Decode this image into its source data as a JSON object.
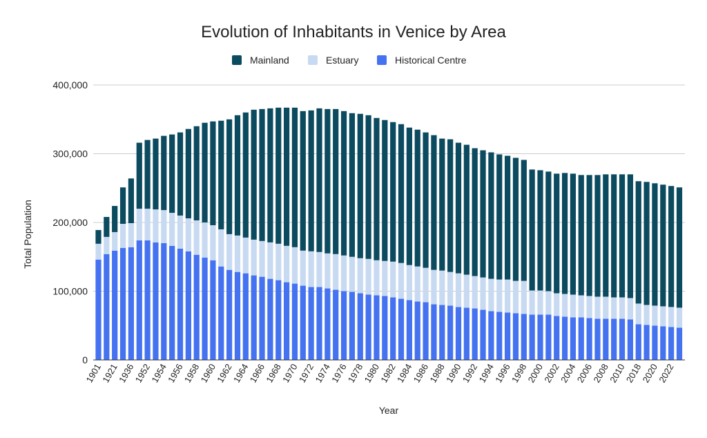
{
  "chart_data": {
    "type": "bar",
    "stacked": true,
    "title": "Evolution of Inhabitants in Venice by Area",
    "xlabel": "Year",
    "ylabel": "Total Population",
    "ylim": [
      0,
      400000
    ],
    "yticks": [
      0,
      100000,
      200000,
      300000,
      400000
    ],
    "ytick_labels": [
      "0",
      "100,000",
      "200,000",
      "300,000",
      "400,000"
    ],
    "legend_position": "top",
    "grid": true,
    "categories": [
      "1901",
      "1911",
      "1921",
      "1931",
      "1936",
      "1951",
      "1952",
      "1953",
      "1954",
      "1955",
      "1956",
      "1957",
      "1958",
      "1959",
      "1960",
      "1961",
      "1962",
      "1963",
      "1964",
      "1965",
      "1966",
      "1967",
      "1968",
      "1969",
      "1970",
      "1971",
      "1972",
      "1973",
      "1974",
      "1975",
      "1976",
      "1977",
      "1978",
      "1979",
      "1980",
      "1981",
      "1982",
      "1983",
      "1984",
      "1985",
      "1986",
      "1987",
      "1988",
      "1989",
      "1990",
      "1991",
      "1992",
      "1993",
      "1994",
      "1995",
      "1996",
      "1997",
      "1998",
      "1999",
      "2000",
      "2001",
      "2002",
      "2003",
      "2004",
      "2005",
      "2006",
      "2007",
      "2008",
      "2009",
      "2010",
      "2011",
      "2018",
      "2019",
      "2020",
      "2021",
      "2022",
      "2023"
    ],
    "xtick_labels": {
      "1901": "1901",
      "1921": "1921",
      "1936": "1936",
      "1952": "1952",
      "1954": "1954",
      "1956": "1956",
      "1958": "1958",
      "1960": "1960",
      "1962": "1962",
      "1964": "1964",
      "1966": "1966",
      "1968": "1968",
      "1970": "1970",
      "1972": "1972",
      "1974": "1974",
      "1976": "1976",
      "1978": "1978",
      "1980": "1980",
      "1982": "1982",
      "1984": "1984",
      "1986": "1986",
      "1988": "1988",
      "1990": "1990",
      "1992": "1992",
      "1994": "1994",
      "1996": "1996",
      "1998": "1998",
      "2000": "2000",
      "2002": "2002",
      "2004": "2004",
      "2006": "2006",
      "2008": "2008",
      "2010": "2010",
      "2018": "2018",
      "2020": "2020",
      "2022": "2022"
    },
    "series": [
      {
        "name": "Historical Centre",
        "color": "#4472f0",
        "values": [
          146000,
          154000,
          159000,
          163000,
          164000,
          174000,
          174000,
          171000,
          170000,
          166000,
          162000,
          158000,
          153000,
          149000,
          145000,
          136000,
          131000,
          128000,
          126000,
          123000,
          121000,
          118000,
          116000,
          113000,
          111000,
          108000,
          106000,
          106000,
          104000,
          102000,
          100000,
          99000,
          97000,
          95000,
          94000,
          93000,
          91000,
          89000,
          87000,
          85000,
          84000,
          81000,
          80000,
          79000,
          77000,
          76000,
          75000,
          73000,
          71000,
          70000,
          69000,
          68000,
          67000,
          66000,
          66000,
          66000,
          64000,
          63000,
          62000,
          62000,
          61000,
          60000,
          60000,
          60000,
          60000,
          59000,
          52000,
          51000,
          50000,
          49000,
          48000,
          47000
        ]
      },
      {
        "name": "Estuary",
        "color": "#c8daf2",
        "values": [
          23000,
          25000,
          27000,
          35000,
          35000,
          46000,
          46000,
          48000,
          48000,
          48000,
          48000,
          48000,
          50000,
          51000,
          51000,
          54000,
          52000,
          53000,
          52000,
          52000,
          52000,
          53000,
          53000,
          53000,
          53000,
          51000,
          52000,
          51000,
          51000,
          52000,
          52000,
          51000,
          51000,
          52000,
          51000,
          51000,
          52000,
          52000,
          51000,
          51000,
          50000,
          50000,
          50000,
          49000,
          49000,
          48000,
          47000,
          47000,
          47000,
          47000,
          48000,
          47000,
          48000,
          35000,
          35000,
          34000,
          33000,
          33000,
          33000,
          32000,
          32000,
          32000,
          32000,
          31000,
          31000,
          31000,
          30000,
          29000,
          29000,
          29000,
          29000,
          29000
        ]
      },
      {
        "name": "Mainland",
        "color": "#0b4a5f",
        "values": [
          20000,
          29000,
          38000,
          53000,
          65000,
          96000,
          100000,
          103000,
          108000,
          114000,
          121000,
          130000,
          137000,
          145000,
          151000,
          158000,
          167000,
          175000,
          182000,
          189000,
          192000,
          195000,
          198000,
          201000,
          203000,
          203000,
          205000,
          209000,
          210000,
          211000,
          210000,
          209000,
          210000,
          209000,
          207000,
          205000,
          203000,
          202000,
          200000,
          199000,
          197000,
          196000,
          192000,
          193000,
          190000,
          189000,
          186000,
          185000,
          184000,
          182000,
          180000,
          179000,
          176000,
          176000,
          175000,
          174000,
          174000,
          176000,
          176000,
          175000,
          176000,
          177000,
          178000,
          179000,
          179000,
          180000,
          178000,
          179000,
          178000,
          177000,
          176000,
          175000
        ]
      }
    ],
    "legend": [
      {
        "name": "Mainland",
        "color": "#0b4a5f"
      },
      {
        "name": "Estuary",
        "color": "#c8daf2"
      },
      {
        "name": "Historical Centre",
        "color": "#4472f0"
      }
    ]
  }
}
